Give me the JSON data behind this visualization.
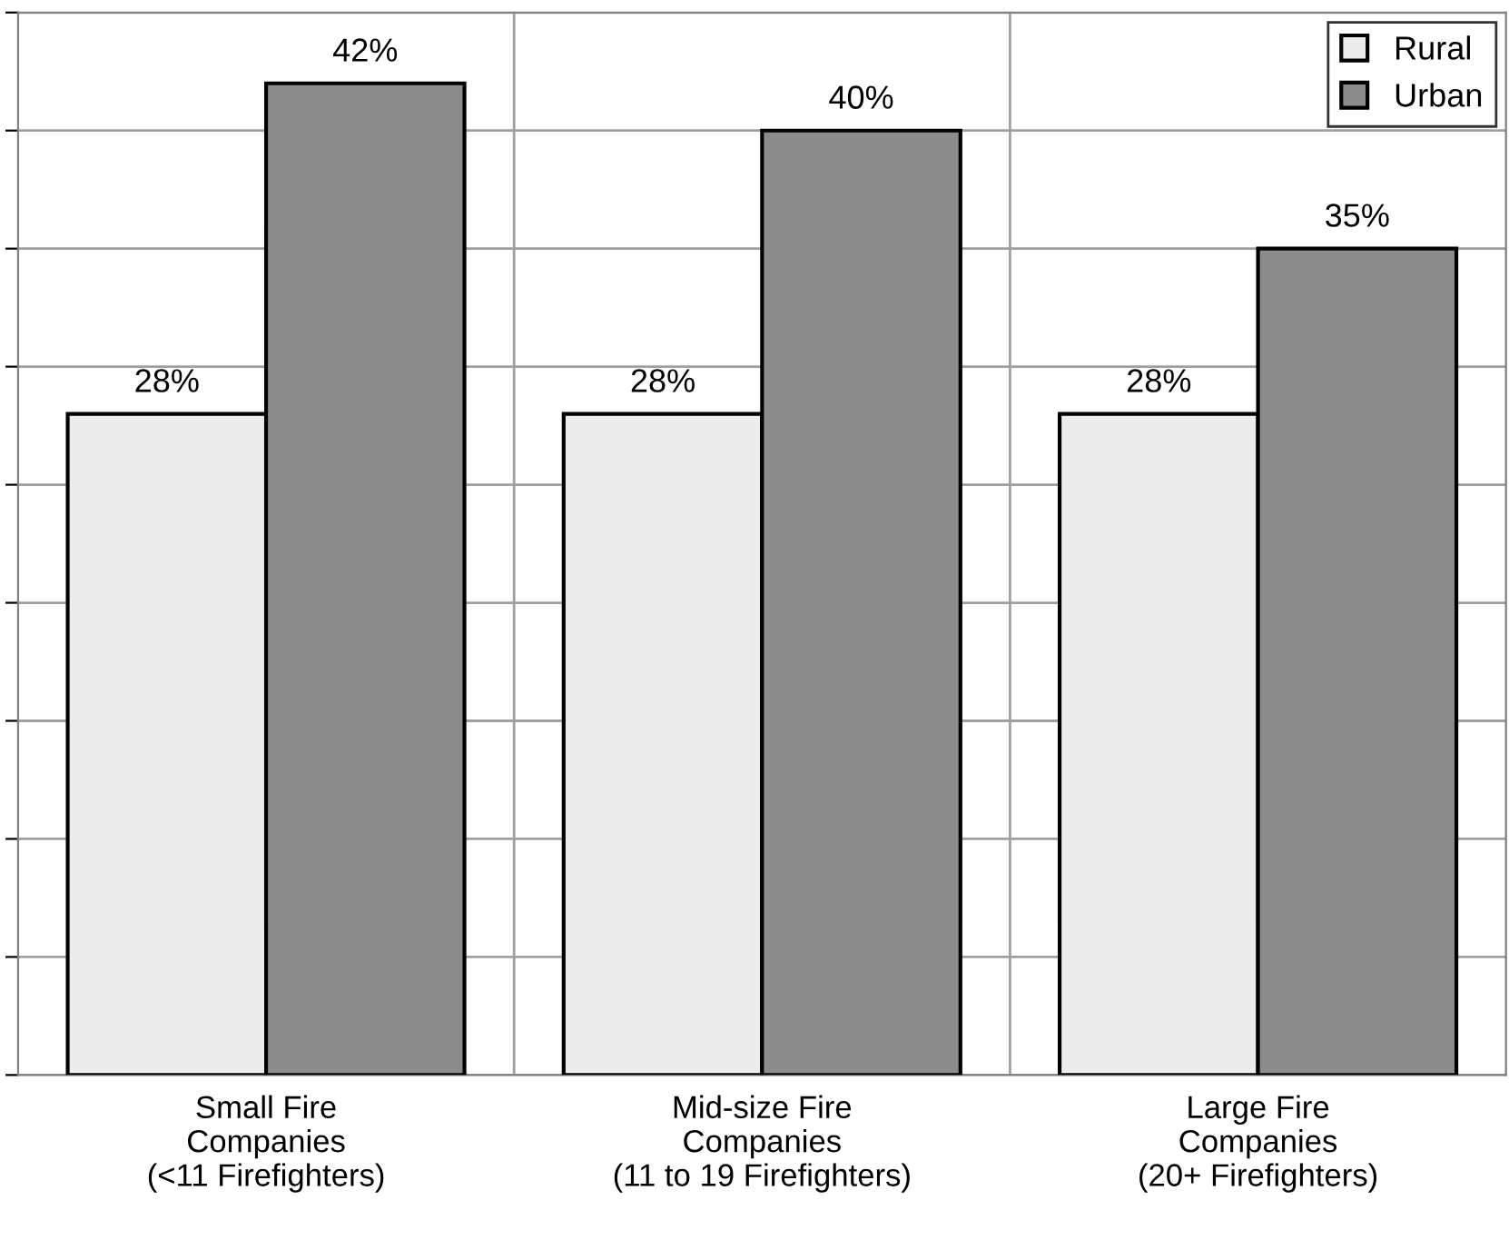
{
  "chart_data": {
    "type": "bar",
    "categories": [
      "Small Fire\nCompanies\n(<11 Firefighters)",
      "Mid-size Fire\nCompanies\n(11 to 19 Firefighters)",
      "Large Fire\nCompanies\n(20+ Firefighters)"
    ],
    "series": [
      {
        "name": "Rural",
        "color": "#ececec",
        "values": [
          28,
          28,
          28
        ],
        "value_labels": [
          "28%",
          "28%",
          "28%"
        ]
      },
      {
        "name": "Urban",
        "color": "#8c8c8c",
        "values": [
          42,
          40,
          35
        ],
        "value_labels": [
          "42%",
          "40%",
          "35%"
        ]
      }
    ],
    "ylim": [
      0,
      45
    ],
    "yticks": [
      {
        "value": 0,
        "label": null
      },
      {
        "value": 5,
        "label": null
      },
      {
        "value": 10,
        "label": null
      },
      {
        "value": 15,
        "label": null
      },
      {
        "value": 20,
        "label": null
      },
      {
        "value": 25,
        "label": null
      },
      {
        "value": 30,
        "label": null
      },
      {
        "value": 35,
        "label": null
      },
      {
        "value": 40,
        "label": null
      },
      {
        "value": 45,
        "label": null
      }
    ],
    "tick_labels": "x",
    "grid": true,
    "legend": "top right"
  }
}
